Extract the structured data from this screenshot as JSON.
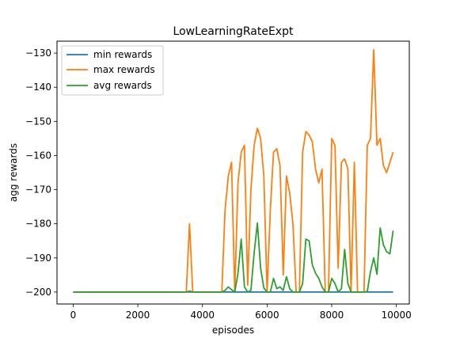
{
  "chart_data": {
    "type": "line",
    "title": "LowLearningRateExpt",
    "xlabel": "episodes",
    "ylabel": "agg rewards",
    "xlim": [
      -500,
      10400
    ],
    "ylim": [
      -203.5,
      -126.5
    ],
    "xticks": [
      0,
      2000,
      4000,
      6000,
      8000,
      10000
    ],
    "yticks": [
      -200,
      -190,
      -180,
      -170,
      -160,
      -150,
      -140,
      -130
    ],
    "ytick_labels": [
      "−200",
      "−190",
      "−180",
      "−170",
      "−160",
      "−150",
      "−140",
      "−130"
    ],
    "legend": {
      "position": "top-left"
    },
    "grid": false,
    "x": [
      0,
      100,
      200,
      300,
      400,
      500,
      600,
      700,
      800,
      900,
      1000,
      1100,
      1200,
      1300,
      1400,
      1500,
      1600,
      1700,
      1800,
      1900,
      2000,
      2100,
      2200,
      2300,
      2400,
      2500,
      2600,
      2700,
      2800,
      2900,
      3000,
      3100,
      3200,
      3300,
      3400,
      3500,
      3600,
      3700,
      3800,
      3900,
      4000,
      4100,
      4200,
      4300,
      4400,
      4500,
      4600,
      4700,
      4800,
      4900,
      5000,
      5100,
      5200,
      5300,
      5400,
      5500,
      5600,
      5700,
      5800,
      5900,
      6000,
      6100,
      6200,
      6300,
      6400,
      6500,
      6600,
      6700,
      6800,
      6900,
      7000,
      7100,
      7200,
      7300,
      7400,
      7500,
      7600,
      7700,
      7800,
      7900,
      8000,
      8100,
      8200,
      8300,
      8400,
      8500,
      8600,
      8700,
      8800,
      8900,
      9000,
      9100,
      9200,
      9300,
      9400,
      9500,
      9600,
      9700,
      9800,
      9900
    ],
    "series": [
      {
        "name": "min rewards",
        "color": "#1f77b4",
        "values": [
          -200,
          -200,
          -200,
          -200,
          -200,
          -200,
          -200,
          -200,
          -200,
          -200,
          -200,
          -200,
          -200,
          -200,
          -200,
          -200,
          -200,
          -200,
          -200,
          -200,
          -200,
          -200,
          -200,
          -200,
          -200,
          -200,
          -200,
          -200,
          -200,
          -200,
          -200,
          -200,
          -200,
          -200,
          -200,
          -200,
          -200,
          -200,
          -200,
          -200,
          -200,
          -200,
          -200,
          -200,
          -200,
          -200,
          -200,
          -200,
          -200,
          -200,
          -200,
          -200,
          -200,
          -200,
          -200,
          -200,
          -200,
          -200,
          -200,
          -200,
          -200,
          -200,
          -200,
          -200,
          -200,
          -200,
          -200,
          -200,
          -200,
          -200,
          -200,
          -200,
          -200,
          -200,
          -200,
          -200,
          -200,
          -200,
          -200,
          -200,
          -200,
          -200,
          -200,
          -200,
          -200,
          -200,
          -200,
          -200,
          -200,
          -200,
          -200,
          -200,
          -200,
          -200,
          -200,
          -200,
          -200,
          -200,
          -200,
          -200
        ]
      },
      {
        "name": "max rewards",
        "color": "#ff7f0e",
        "values": [
          -200,
          -200,
          -200,
          -200,
          -200,
          -200,
          -200,
          -200,
          -200,
          -200,
          -200,
          -200,
          -200,
          -200,
          -200,
          -200,
          -200,
          -200,
          -200,
          -200,
          -200,
          -200,
          -200,
          -200,
          -200,
          -200,
          -200,
          -200,
          -200,
          -200,
          -200,
          -200,
          -200,
          -200,
          -200,
          -200,
          -180,
          -200,
          -200,
          -200,
          -200,
          -200,
          -200,
          -200,
          -200,
          -200,
          -200,
          -176,
          -166,
          -162,
          -200,
          -168,
          -159,
          -157,
          -198,
          -170,
          -157,
          -152,
          -155,
          -166,
          -200,
          -176,
          -159,
          -158,
          -163,
          -195,
          -166,
          -171,
          -180,
          -200,
          -200,
          -159,
          -153,
          -154,
          -156,
          -164,
          -168,
          -164,
          -200,
          -200,
          -155,
          -157,
          -193,
          -162,
          -161,
          -164,
          -200,
          -162,
          -200,
          -200,
          -200,
          -157,
          -155,
          -129,
          -157,
          -155,
          -163,
          -165,
          -162,
          -159
        ]
      },
      {
        "name": "avg rewards",
        "color": "#2ca02c",
        "values": [
          -200,
          -200,
          -200,
          -200,
          -200,
          -200,
          -200,
          -200,
          -200,
          -200,
          -200,
          -200,
          -200,
          -200,
          -200,
          -200,
          -200,
          -200,
          -200,
          -200,
          -200,
          -200,
          -200,
          -200,
          -200,
          -200,
          -200,
          -200,
          -200,
          -200,
          -200,
          -200,
          -200,
          -200,
          -200,
          -200,
          -199.7,
          -200,
          -200,
          -200,
          -200,
          -200,
          -200,
          -200,
          -200,
          -200,
          -200,
          -199.5,
          -198.5,
          -199.3,
          -200,
          -194.5,
          -184.5,
          -198.5,
          -200,
          -199.5,
          -188.5,
          -179.8,
          -193,
          -198.8,
          -200,
          -200,
          -196,
          -199,
          -198.5,
          -199.5,
          -195.5,
          -199,
          -200,
          -200,
          -200,
          -197.5,
          -184.5,
          -185,
          -192,
          -194.5,
          -196,
          -198.5,
          -200,
          -200,
          -196,
          -197.5,
          -200,
          -199,
          -187.5,
          -197.5,
          -200,
          -200,
          -200,
          -200,
          -200,
          -199.8,
          -194,
          -190,
          -194.8,
          -181.2,
          -186.2,
          -188.2,
          -188.8,
          -182
        ]
      }
    ]
  }
}
